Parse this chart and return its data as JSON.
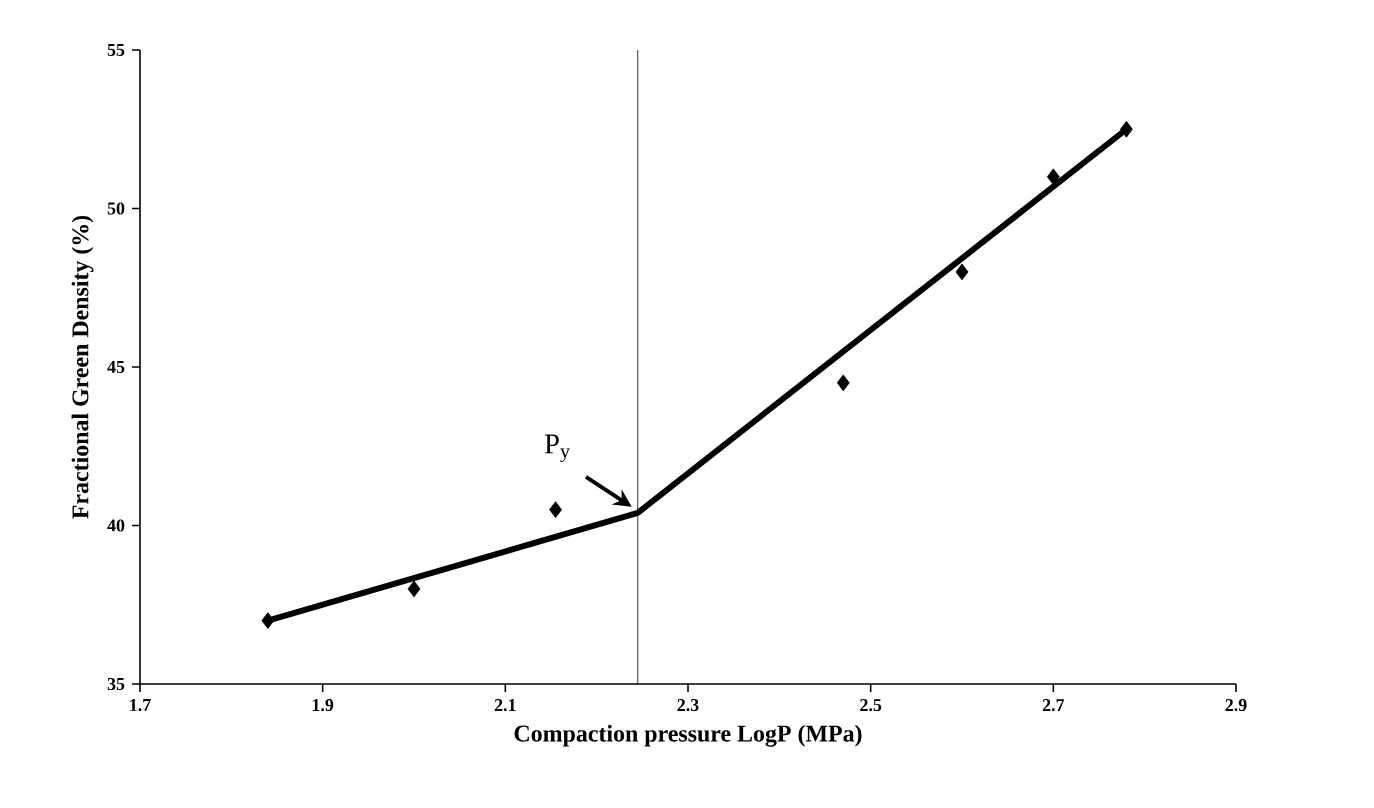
{
  "chart_data": {
    "type": "scatter",
    "xlabel": "Compaction pressure LogP (MPa)",
    "ylabel": "Fractional Green Density  (%)",
    "xlim": [
      1.7,
      2.9
    ],
    "xticks": [
      1.7,
      1.9,
      2.1,
      2.3,
      2.5,
      2.7,
      2.9
    ],
    "ylim": [
      35,
      55
    ],
    "yticks": [
      35,
      40,
      45,
      50,
      55
    ],
    "series": [
      {
        "color": "#000000",
        "marker": "diamond",
        "x": [
          1.84,
          2.0,
          2.155,
          2.47,
          2.6,
          2.7,
          2.78
        ],
        "values": [
          37,
          38,
          40.5,
          44.5,
          48,
          51,
          52.5
        ]
      },
      {
        "type": "line",
        "color": "#000000",
        "marker": "none",
        "x": [
          1.84,
          2.245,
          2.78
        ],
        "values": [
          37,
          40.4,
          52.5
        ]
      }
    ],
    "ref_lines": [
      {
        "axis": "x",
        "value": 2.245,
        "color": "#000000"
      }
    ],
    "annotations": [
      {
        "text": "P$_{y}$",
        "x": 2.245,
        "y": 40.4
      }
    ],
    "grid": false
  }
}
